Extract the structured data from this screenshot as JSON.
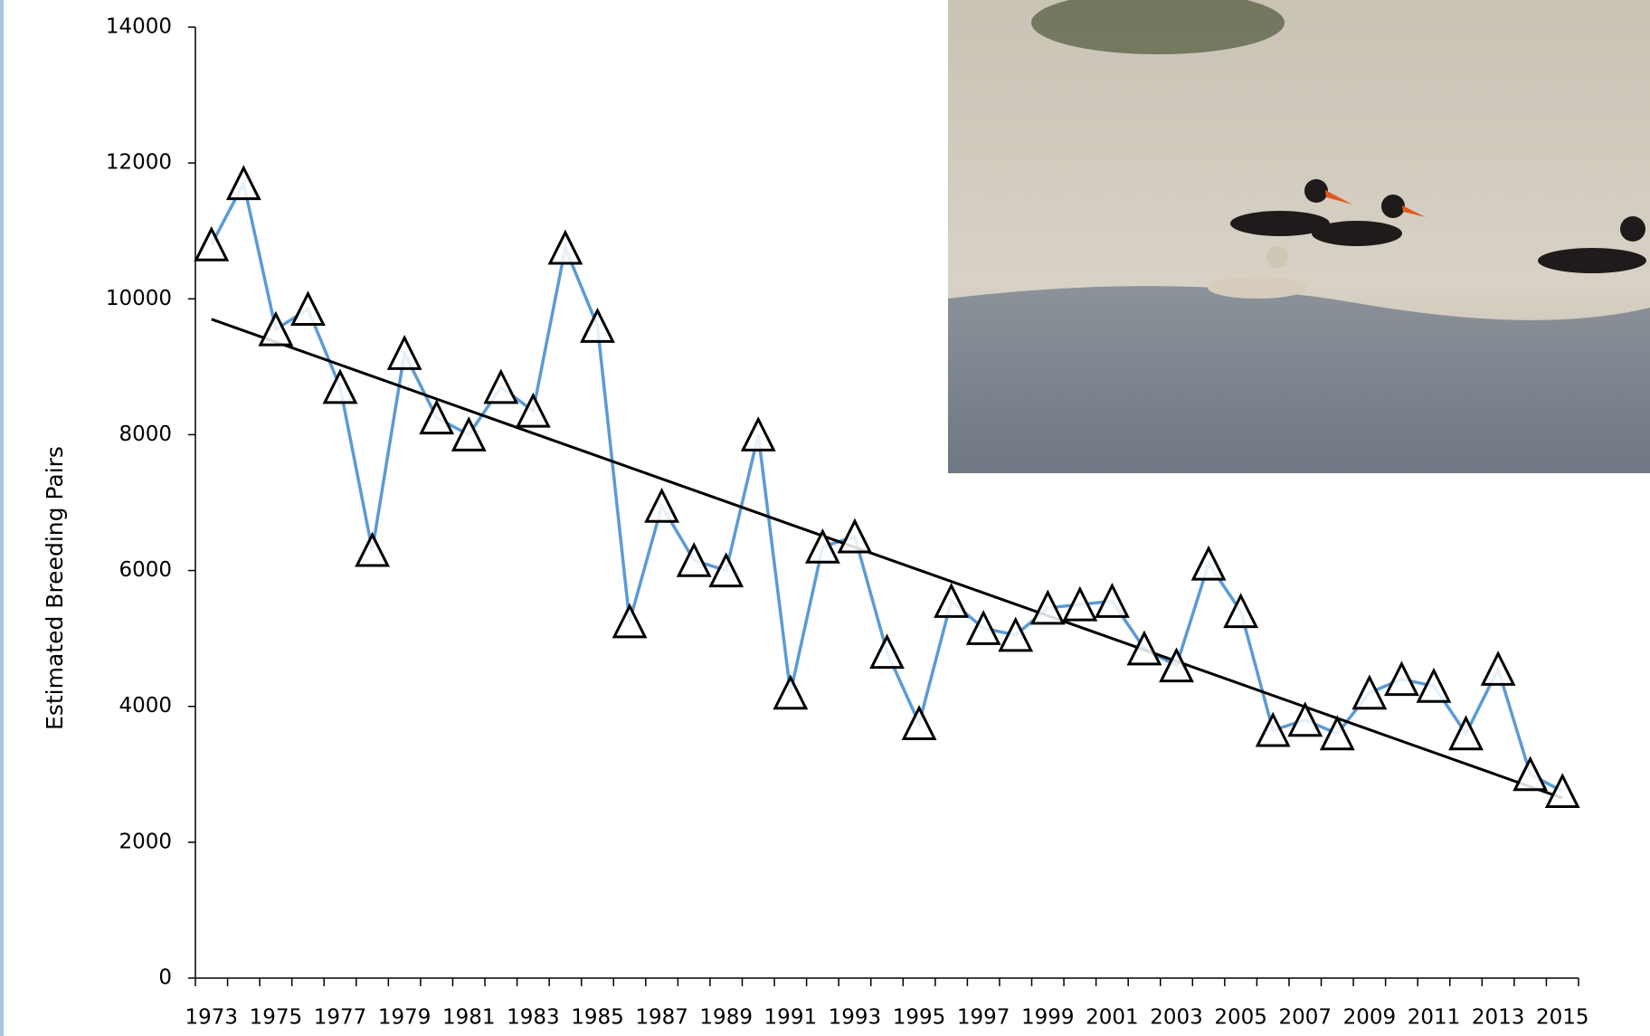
{
  "chart_data": {
    "type": "line",
    "y_label": "Estimated Breeding Pairs",
    "categories": [
      "1973",
      null,
      "1975",
      null,
      "1977",
      null,
      "1979",
      null,
      "1981",
      null,
      "1983",
      null,
      "1985",
      null,
      "1987",
      null,
      "1989",
      null,
      "1991",
      null,
      "1993",
      null,
      "1995",
      null,
      "1997",
      null,
      "1999",
      null,
      "2001",
      null,
      "2003",
      null,
      "2005",
      null,
      "2007",
      null,
      "2009",
      null,
      "2011",
      null,
      "2013",
      null,
      "2015"
    ],
    "series": [
      {
        "color": "#5b9bd5",
        "marker": "triangle",
        "values": [
          10800,
          11700,
          9550,
          9850,
          8700,
          6300,
          9200,
          8250,
          8000,
          8700,
          8350,
          10750,
          9600,
          5250,
          6950,
          6150,
          6000,
          8000,
          4200,
          6350,
          6500,
          4800,
          3750,
          5550,
          5150,
          5050,
          5450,
          5500,
          5550,
          4850,
          4600,
          6100,
          5400,
          3650,
          3800,
          3600,
          4200,
          4400,
          4300,
          3600,
          4550,
          3000,
          2750
        ]
      }
    ],
    "trendline": {
      "color": "#000000",
      "values": [
        9700,
        2650
      ]
    },
    "ylim": [
      0,
      14000
    ],
    "yticks": [
      0,
      2000,
      4000,
      6000,
      8000,
      10000,
      12000,
      14000
    ]
  }
}
